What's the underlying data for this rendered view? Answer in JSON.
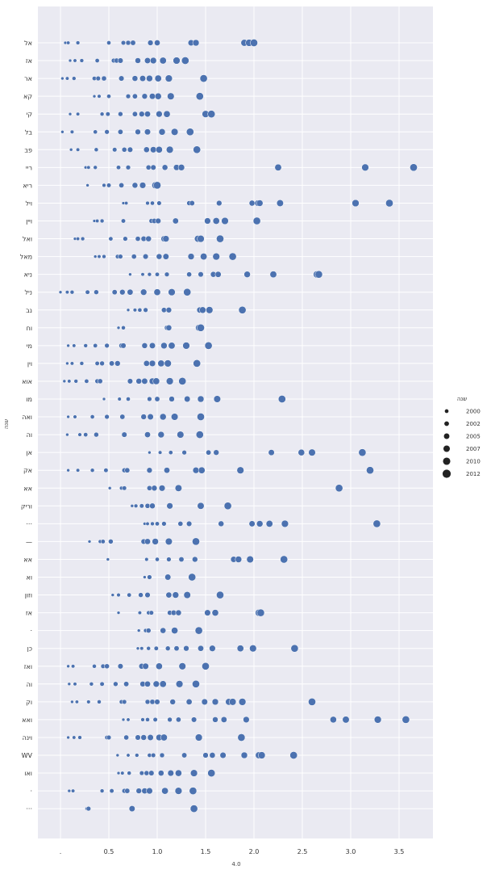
{
  "chart_data": {
    "type": "scatter",
    "xlabel": "4.0",
    "ylabel": "שנה",
    "x_tick_labels": [
      ".",
      "0.5",
      "1.0",
      "1.5",
      "2.0",
      "2.5",
      "3.0",
      "3.5"
    ],
    "x_ticks": [
      0,
      0.5,
      1.0,
      1.5,
      2.0,
      2.5,
      3.0,
      3.5
    ],
    "xlim": [
      -0.25,
      3.85
    ],
    "grid": true,
    "legend": {
      "title": "שנה",
      "placement": "right",
      "entries": [
        {
          "label": "2000",
          "size_level": 1
        },
        {
          "label": "2002",
          "size_level": 2
        },
        {
          "label": "2005",
          "size_level": 3
        },
        {
          "label": "2007",
          "size_level": 4
        },
        {
          "label": "2010",
          "size_level": 5
        },
        {
          "label": "2012",
          "size_level": 6
        }
      ]
    },
    "colors": {
      "point": "#4c72b0",
      "plot_bg": "#eaeaf2",
      "grid": "#ffffff"
    },
    "rows": [
      {
        "label": "אל",
        "x": [
          0.05,
          0.08,
          0.18,
          0.5,
          0.65,
          0.7,
          0.75,
          0.93,
          1.0,
          1.35,
          1.4,
          1.9,
          1.95,
          2.0
        ]
      },
      {
        "label": "אז",
        "x": [
          0.1,
          0.15,
          0.22,
          0.38,
          0.55,
          0.58,
          0.62,
          0.8,
          0.9,
          0.96,
          1.06,
          1.2,
          1.29
        ]
      },
      {
        "label": "אר",
        "x": [
          0.02,
          0.07,
          0.14,
          0.35,
          0.39,
          0.45,
          0.63,
          0.77,
          0.85,
          0.92,
          1.01,
          1.12,
          1.48
        ]
      },
      {
        "label": "קא",
        "x": [
          0.35,
          0.4,
          0.5,
          0.7,
          0.77,
          0.87,
          0.95,
          1.01,
          1.14,
          1.44
        ]
      },
      {
        "label": "קי",
        "x": [
          0.1,
          0.18,
          0.43,
          0.49,
          0.62,
          0.77,
          0.84,
          0.9,
          1.02,
          1.1,
          1.5,
          1.56
        ]
      },
      {
        "label": "בל",
        "x": [
          0.02,
          0.12,
          0.36,
          0.48,
          0.62,
          0.8,
          0.9,
          1.05,
          1.18,
          1.34
        ]
      },
      {
        "label": "פב",
        "x": [
          0.11,
          0.18,
          0.37,
          0.56,
          0.66,
          0.72,
          0.89,
          0.96,
          1.02,
          1.13,
          1.41
        ]
      },
      {
        "label": "ריי",
        "x": [
          0.26,
          0.29,
          0.36,
          0.6,
          0.7,
          0.91,
          0.96,
          1.08,
          1.2,
          1.25,
          2.25,
          3.15,
          3.65
        ]
      },
      {
        "label": "ריא",
        "x": [
          0.28,
          0.45,
          0.5,
          0.63,
          0.77,
          0.85,
          0.98,
          1.0
        ]
      },
      {
        "label": "ויל",
        "x": [
          0.65,
          0.68,
          0.9,
          0.95,
          1.02,
          1.33,
          1.36,
          1.64,
          1.98,
          2.04,
          2.06,
          2.27,
          3.05,
          3.4
        ]
      },
      {
        "label": "ויין",
        "x": [
          0.35,
          0.38,
          0.43,
          0.65,
          0.94,
          0.97,
          1.01,
          1.19,
          1.52,
          1.61,
          1.7,
          2.03
        ]
      },
      {
        "label": "ואל",
        "x": [
          0.15,
          0.18,
          0.23,
          0.52,
          0.67,
          0.8,
          0.86,
          0.91,
          1.07,
          1.09,
          1.42,
          1.45,
          1.65
        ]
      },
      {
        "label": "מאל",
        "x": [
          0.36,
          0.4,
          0.45,
          0.59,
          0.62,
          0.76,
          0.88,
          1.02,
          1.09,
          1.35,
          1.48,
          1.61,
          1.78
        ]
      },
      {
        "label": "ניא",
        "x": [
          0.72,
          0.85,
          0.92,
          1.0,
          1.1,
          1.33,
          1.45,
          1.58,
          1.63,
          1.93,
          2.2,
          2.65,
          2.67
        ]
      },
      {
        "label": "ניל",
        "x": [
          0.0,
          0.07,
          0.12,
          0.28,
          0.37,
          0.56,
          0.64,
          0.72,
          0.86,
          1.0,
          1.15,
          1.31
        ]
      },
      {
        "label": "נב",
        "x": [
          0.7,
          0.77,
          0.82,
          0.88,
          1.07,
          1.12,
          1.44,
          1.47,
          1.54,
          1.88
        ]
      },
      {
        "label": "וח",
        "x": [
          0.6,
          0.65,
          1.1,
          1.12,
          1.43,
          1.45
        ]
      },
      {
        "label": "מי",
        "x": [
          0.08,
          0.14,
          0.26,
          0.36,
          0.48,
          0.63,
          0.65,
          0.87,
          0.95,
          1.07,
          1.15,
          1.3,
          1.53
        ]
      },
      {
        "label": "וין",
        "x": [
          0.07,
          0.12,
          0.22,
          0.38,
          0.43,
          0.53,
          0.59,
          0.89,
          0.95,
          1.04,
          1.11,
          1.41
        ]
      },
      {
        "label": "אוא",
        "x": [
          0.04,
          0.09,
          0.16,
          0.27,
          0.38,
          0.41,
          0.72,
          0.81,
          0.87,
          0.95,
          0.99,
          1.13,
          1.26
        ]
      },
      {
        "label": "מו",
        "x": [
          0.45,
          0.61,
          0.7,
          0.92,
          1.0,
          1.15,
          1.31,
          1.45,
          1.62,
          2.29
        ]
      },
      {
        "label": "ואה",
        "x": [
          0.08,
          0.15,
          0.33,
          0.48,
          0.64,
          0.86,
          0.93,
          1.06,
          1.18,
          1.45
        ]
      },
      {
        "label": "וה",
        "x": [
          0.07,
          0.2,
          0.26,
          0.37,
          0.66,
          0.9,
          1.04,
          1.24,
          1.44
        ]
      },
      {
        "label": "אן",
        "x": [
          0.92,
          1.03,
          1.14,
          1.28,
          1.53,
          1.61,
          2.18,
          2.49,
          2.6,
          3.12
        ]
      },
      {
        "label": "אק",
        "x": [
          0.08,
          0.18,
          0.33,
          0.47,
          0.66,
          0.69,
          0.92,
          1.1,
          1.4,
          1.46,
          1.86,
          3.2
        ]
      },
      {
        "label": "אא",
        "x": [
          0.51,
          0.63,
          0.66,
          0.92,
          0.97,
          1.05,
          1.22,
          2.88
        ]
      },
      {
        "label": "וריק",
        "x": [
          0.74,
          0.78,
          0.84,
          0.9,
          0.95,
          1.13,
          1.45,
          1.73
        ]
      },
      {
        "label": "···",
        "x": [
          0.87,
          0.9,
          0.95,
          1.0,
          1.07,
          1.24,
          1.33,
          1.66,
          1.98,
          2.06,
          2.16,
          2.32,
          3.27
        ]
      },
      {
        "label": "—",
        "x": [
          0.3,
          0.41,
          0.44,
          0.52,
          0.86,
          0.9,
          0.98,
          1.12,
          1.4
        ]
      },
      {
        "label": "אא",
        "x": [
          0.49,
          0.89,
          1.0,
          1.12,
          1.25,
          1.39,
          1.79,
          1.84,
          1.96,
          2.31
        ]
      },
      {
        "label": "וא",
        "x": [
          0.87,
          0.92,
          1.11,
          1.36
        ]
      },
      {
        "label": "וזון",
        "x": [
          0.54,
          0.6,
          0.71,
          0.83,
          0.9,
          1.12,
          1.19,
          1.31,
          1.65
        ]
      },
      {
        "label": "אז",
        "x": [
          0.6,
          0.82,
          0.91,
          0.94,
          1.13,
          1.17,
          1.22,
          1.52,
          1.6,
          2.05,
          2.07
        ]
      },
      {
        "label": "·",
        "x": [
          0.81,
          0.88,
          0.91,
          1.06,
          1.18,
          1.43
        ]
      },
      {
        "label": "כן",
        "x": [
          0.8,
          0.84,
          0.91,
          0.99,
          1.11,
          1.2,
          1.3,
          1.45,
          1.57,
          1.86,
          1.99,
          2.42
        ]
      },
      {
        "label": "ואז",
        "x": [
          0.08,
          0.13,
          0.35,
          0.44,
          0.48,
          0.62,
          0.84,
          0.88,
          1.02,
          1.26,
          1.5
        ]
      },
      {
        "label": "וה",
        "x": [
          0.09,
          0.15,
          0.32,
          0.43,
          0.57,
          0.68,
          0.85,
          0.9,
          0.99,
          1.06,
          1.23,
          1.4
        ]
      },
      {
        "label": "וק",
        "x": [
          0.12,
          0.17,
          0.29,
          0.4,
          0.63,
          0.66,
          0.9,
          0.95,
          1.0,
          1.16,
          1.33,
          1.49,
          1.6,
          1.74,
          1.78,
          1.88,
          2.6
        ]
      },
      {
        "label": "ואא",
        "x": [
          0.65,
          0.7,
          0.85,
          0.9,
          0.98,
          1.13,
          1.22,
          1.38,
          1.6,
          1.69,
          1.92,
          2.82,
          2.95,
          3.28,
          3.57
        ]
      },
      {
        "label": "וינה",
        "x": [
          0.08,
          0.14,
          0.2,
          0.48,
          0.5,
          0.68,
          0.8,
          0.86,
          0.93,
          1.02,
          1.07,
          1.43,
          1.87
        ]
      },
      {
        "label": "WV",
        "x": [
          0.59,
          0.7,
          0.79,
          0.92,
          0.96,
          1.05,
          1.28,
          1.5,
          1.57,
          1.68,
          1.9,
          2.05,
          2.08,
          2.41
        ]
      },
      {
        "label": "ואו",
        "x": [
          0.6,
          0.64,
          0.71,
          0.84,
          0.89,
          0.94,
          1.04,
          1.14,
          1.22,
          1.38,
          1.56
        ]
      },
      {
        "label": "·",
        "x": [
          0.09,
          0.13,
          0.43,
          0.53,
          0.66,
          0.69,
          0.81,
          0.87,
          0.92,
          1.08,
          1.22,
          1.37
        ]
      },
      {
        "label": "···",
        "x": [
          0.27,
          0.29,
          0.74,
          1.38
        ]
      }
    ]
  }
}
